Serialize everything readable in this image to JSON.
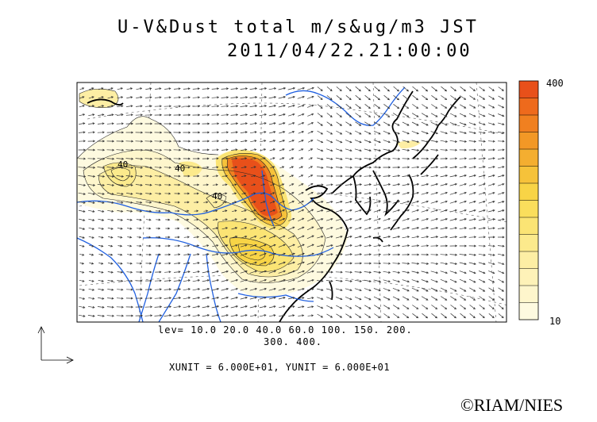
{
  "title": "U-V&Dust total m/s&ug/m3 JST",
  "datetime": "2011/04/22.21:00:00",
  "levels_line1": "lev= 10.0 20.0 40.0 60.0 100. 150. 200.",
  "levels_line2": "300. 400.",
  "units_text": "XUNIT = 6.000E+01, YUNIT = 6.000E+01",
  "colorbar": {
    "max_label": "400",
    "min_label": "10",
    "colors": [
      "#e8501a",
      "#ee6a1c",
      "#f08020",
      "#f29826",
      "#f4ae30",
      "#f6c23a",
      "#f8d446",
      "#fade5c",
      "#fbe474",
      "#fcea8c",
      "#fdeea4",
      "#fef2b8",
      "#fef6cc",
      "#fefae0"
    ]
  },
  "contour_labels": [
    "40",
    "40",
    "40"
  ],
  "credit": "©RIAM/NIES",
  "colors": {
    "ocean": "#ffffff",
    "coast": "#000000",
    "river": "#2060e0",
    "vector": "#333333"
  }
}
